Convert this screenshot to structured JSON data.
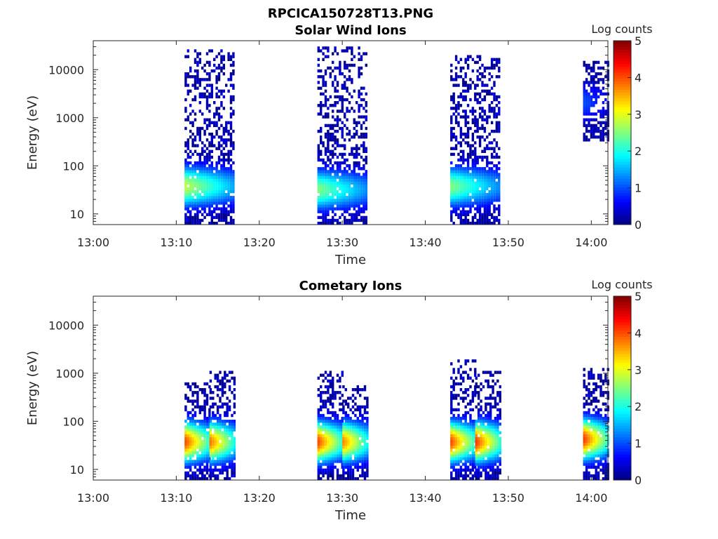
{
  "figure_title": "RPCICA150728T13.PNG",
  "colormap": [
    "#00007f",
    "#0000ff",
    "#007fff",
    "#00ffff",
    "#7fff7f",
    "#ffff00",
    "#ff7f00",
    "#ff0000",
    "#7f0000"
  ],
  "chart_data": [
    {
      "type": "heatmap",
      "title": "Solar Wind Ions",
      "xlabel": "Time",
      "ylabel": "Energy (eV)",
      "x_ticks": [
        "13:00",
        "13:10",
        "13:20",
        "13:30",
        "13:40",
        "13:50",
        "14:00"
      ],
      "y_ticks": [
        "10",
        "100",
        "1000",
        "10000"
      ],
      "y_scale": "log",
      "xlim": [
        "13:00",
        "14:02"
      ],
      "ylim": [
        6,
        40000
      ],
      "colorbar_label": "Log counts",
      "colorbar_ticks": [
        "0",
        "1",
        "2",
        "3",
        "4",
        "5"
      ],
      "clim": [
        0,
        5
      ],
      "bursts": [
        {
          "t_start": "13:11",
          "t_end": "13:17",
          "e_min": 6,
          "e_max": 25000,
          "peak_energy": 35,
          "peak_log_counts": 2.8
        },
        {
          "t_start": "13:27",
          "t_end": "13:33",
          "e_min": 6,
          "e_max": 28000,
          "peak_energy": 30,
          "peak_log_counts": 2.5
        },
        {
          "t_start": "13:43",
          "t_end": "13:49",
          "e_min": 6,
          "e_max": 18000,
          "peak_energy": 35,
          "peak_log_counts": 2.5
        },
        {
          "t_start": "13:59",
          "t_end": "14:02",
          "e_min": 300,
          "e_max": 15000,
          "peak_energy": 2000,
          "peak_log_counts": 1.0
        }
      ]
    },
    {
      "type": "heatmap",
      "title": "Cometary Ions",
      "xlabel": "Time",
      "ylabel": "Energy (eV)",
      "x_ticks": [
        "13:00",
        "13:10",
        "13:20",
        "13:30",
        "13:40",
        "13:50",
        "14:00"
      ],
      "y_ticks": [
        "10",
        "100",
        "1000",
        "10000"
      ],
      "y_scale": "log",
      "xlim": [
        "13:00",
        "14:02"
      ],
      "ylim": [
        6,
        40000
      ],
      "colorbar_label": "Log counts",
      "colorbar_ticks": [
        "0",
        "1",
        "2",
        "3",
        "4",
        "5"
      ],
      "clim": [
        0,
        5
      ],
      "bursts": [
        {
          "t_start": "13:11",
          "t_end": "13:14",
          "e_min": 6,
          "e_max": 600,
          "peak_energy": 35,
          "peak_log_counts": 4.0
        },
        {
          "t_start": "13:14",
          "t_end": "13:17",
          "e_min": 6,
          "e_max": 1100,
          "peak_energy": 35,
          "peak_log_counts": 3.8
        },
        {
          "t_start": "13:27",
          "t_end": "13:30",
          "e_min": 6,
          "e_max": 1000,
          "peak_energy": 35,
          "peak_log_counts": 4.0
        },
        {
          "t_start": "13:30",
          "t_end": "13:33",
          "e_min": 6,
          "e_max": 500,
          "peak_energy": 35,
          "peak_log_counts": 3.7
        },
        {
          "t_start": "13:43",
          "t_end": "13:46",
          "e_min": 6,
          "e_max": 1800,
          "peak_energy": 35,
          "peak_log_counts": 4.0
        },
        {
          "t_start": "13:46",
          "t_end": "13:49",
          "e_min": 6,
          "e_max": 1000,
          "peak_energy": 35,
          "peak_log_counts": 4.1
        },
        {
          "t_start": "13:59",
          "t_end": "14:02",
          "e_min": 6,
          "e_max": 1200,
          "peak_energy": 40,
          "peak_log_counts": 4.1
        }
      ]
    }
  ]
}
